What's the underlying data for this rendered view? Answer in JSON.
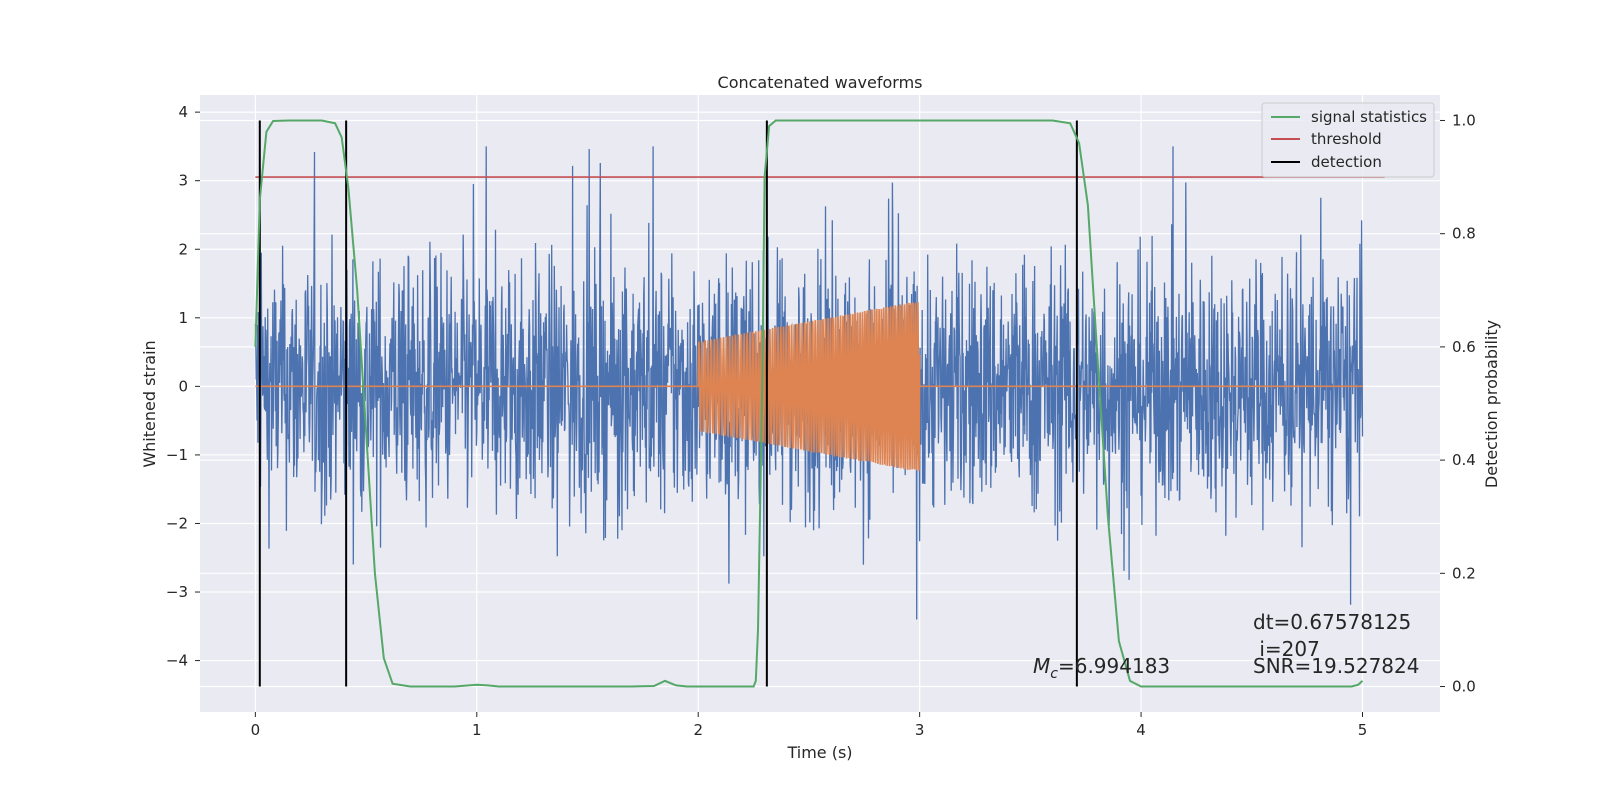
{
  "chart_data": {
    "type": "line",
    "title": "Concatenated waveforms",
    "xlabel": "Time (s)",
    "ylabel_left": "Whitened strain",
    "ylabel_right": "Detection probability",
    "xlim": [
      -0.25,
      5.35
    ],
    "ylim_left": [
      -4.75,
      4.25
    ],
    "ylim_right": [
      -0.045,
      1.045
    ],
    "xticks": [
      0,
      1,
      2,
      3,
      4,
      5
    ],
    "xtick_labels": [
      "0",
      "1",
      "2",
      "3",
      "4",
      "5"
    ],
    "yticks_left": [
      4,
      3,
      2,
      1,
      0,
      -1,
      -2,
      -3,
      -4
    ],
    "ytick_labels_left": [
      "4",
      "3",
      "2",
      "1",
      "0",
      "−1",
      "−2",
      "−3",
      "−4"
    ],
    "yticks_right": [
      1.0,
      0.8,
      0.6,
      0.4,
      0.2,
      0.0
    ],
    "ytick_labels_right": [
      "1.0",
      "0.8",
      "0.6",
      "0.4",
      "0.2",
      "0.0"
    ],
    "grid": true,
    "legend_position": "top-right",
    "legend": [
      {
        "label": "signal statistics",
        "color": "#55a868"
      },
      {
        "label": "threshold",
        "color": "#c44e52"
      },
      {
        "label": "detection",
        "color": "#000000"
      }
    ],
    "series": [
      {
        "role": "whitened-strain-noise",
        "axis": "left",
        "color": "#4c72b0",
        "x_range": [
          0,
          5
        ],
        "approx_envelope": [
          -3.4,
          3.5
        ]
      },
      {
        "role": "template-chirp",
        "axis": "left",
        "color": "#dd8452",
        "chirp_x_range": [
          2.0,
          3.0
        ],
        "amplitude_start": 0.65,
        "amplitude_end": 1.25,
        "baseline": 0
      },
      {
        "name": "signal statistics",
        "axis": "right",
        "color": "#55a868",
        "points": [
          [
            0.0,
            0.6
          ],
          [
            0.02,
            0.86
          ],
          [
            0.05,
            0.98
          ],
          [
            0.08,
            0.999
          ],
          [
            0.15,
            1.0
          ],
          [
            0.3,
            1.0
          ],
          [
            0.36,
            0.995
          ],
          [
            0.39,
            0.97
          ],
          [
            0.42,
            0.88
          ],
          [
            0.46,
            0.7
          ],
          [
            0.5,
            0.45
          ],
          [
            0.54,
            0.2
          ],
          [
            0.58,
            0.05
          ],
          [
            0.62,
            0.005
          ],
          [
            0.7,
            0.0
          ],
          [
            0.9,
            0.0
          ],
          [
            1.0,
            0.003
          ],
          [
            1.05,
            0.002
          ],
          [
            1.1,
            0.0
          ],
          [
            1.3,
            0.0
          ],
          [
            1.7,
            0.0
          ],
          [
            1.8,
            0.001
          ],
          [
            1.85,
            0.01
          ],
          [
            1.9,
            0.002
          ],
          [
            1.95,
            0.0
          ],
          [
            2.25,
            0.0
          ],
          [
            2.26,
            0.01
          ],
          [
            2.27,
            0.1
          ],
          [
            2.29,
            0.55
          ],
          [
            2.3,
            0.9
          ],
          [
            2.32,
            0.99
          ],
          [
            2.35,
            1.0
          ],
          [
            3.6,
            1.0
          ],
          [
            3.68,
            0.995
          ],
          [
            3.72,
            0.96
          ],
          [
            3.76,
            0.85
          ],
          [
            3.8,
            0.6
          ],
          [
            3.85,
            0.3
          ],
          [
            3.9,
            0.08
          ],
          [
            3.95,
            0.01
          ],
          [
            4.0,
            0.0
          ],
          [
            4.95,
            0.0
          ],
          [
            4.98,
            0.003
          ],
          [
            5.0,
            0.01
          ]
        ]
      },
      {
        "name": "threshold",
        "axis": "right",
        "color": "#c44e52",
        "x": [
          0.0,
          5.1
        ],
        "value": 0.9
      },
      {
        "name": "detection",
        "axis": "right",
        "color": "#000000",
        "x_positions": [
          0.02,
          0.41,
          2.31,
          3.71
        ],
        "range": [
          0.0,
          1.0
        ]
      }
    ],
    "annotations": [
      {
        "id": "mc",
        "symbol": "M",
        "subscript": "c",
        "value": "=6.994183"
      },
      {
        "id": "dt",
        "text": "dt=0.67578125"
      },
      {
        "id": "i",
        "text": " i=207"
      },
      {
        "id": "snr",
        "text": "SNR=19.527824"
      }
    ]
  }
}
